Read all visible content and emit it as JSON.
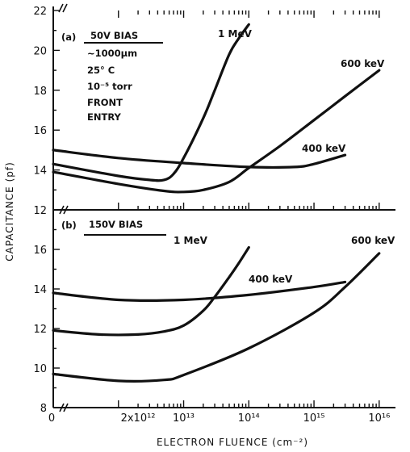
{
  "chart_data": {
    "type": "line",
    "xlabel": "ELECTRON FLUENCE (cm⁻²)",
    "ylabel": "CAPACITANCE (pf)",
    "x_scale": "log",
    "x_tick_labels": [
      {
        "value": 100000000000.0,
        "label": "0"
      },
      {
        "value": 2000000000000.0,
        "label": "2x10¹²"
      },
      {
        "value": 10000000000000.0,
        "label": "10¹³"
      },
      {
        "value": 100000000000000.0,
        "label": "10¹⁴"
      },
      {
        "value": 1000000000000000.0,
        "label": "10¹⁵"
      },
      {
        "value": 1e+16,
        "label": "10¹⁶"
      }
    ],
    "panels": [
      {
        "id": "a",
        "ylim": [
          12,
          22
        ],
        "y_ticks": [
          12,
          14,
          16,
          18,
          20,
          22
        ],
        "y_tick_labels": [
          "12",
          "14",
          "16",
          "18",
          "20",
          "22"
        ],
        "panel_label": "(a)",
        "heading": "50V BIAS",
        "annotations": [
          "~1000μm",
          "25° C",
          "10⁻⁵ torr",
          "FRONT",
          "ENTRY"
        ],
        "series": [
          {
            "name": "1 MeV",
            "x": [
              100000000000.0,
              1000000000000.0,
              3000000000000.0,
              5000000000000.0,
              7000000000000.0,
              10000000000000.0,
              20000000000000.0,
              30000000000000.0,
              50000000000000.0,
              70000000000000.0,
              100000000000000.0
            ],
            "y": [
              14.3,
              13.7,
              13.5,
              13.5,
              13.8,
              14.6,
              16.6,
              18.0,
              19.8,
              20.6,
              21.3
            ]
          },
          {
            "name": "600 keV",
            "x": [
              100000000000.0,
              1000000000000.0,
              5000000000000.0,
              10000000000000.0,
              20000000000000.0,
              50000000000000.0,
              100000000000000.0,
              300000000000000.0,
              1000000000000000.0,
              3000000000000000.0,
              1e+16
            ],
            "y": [
              13.9,
              13.3,
              12.95,
              12.9,
              13.0,
              13.4,
              14.1,
              15.2,
              16.5,
              17.7,
              19.0
            ]
          },
          {
            "name": "400 keV",
            "x": [
              100000000000.0,
              1000000000000.0,
              10000000000000.0,
              100000000000000.0,
              500000000000000.0,
              1000000000000000.0,
              3000000000000000.0
            ],
            "y": [
              15.0,
              14.6,
              14.35,
              14.15,
              14.15,
              14.3,
              14.75
            ]
          }
        ]
      },
      {
        "id": "b",
        "ylim": [
          8,
          18
        ],
        "y_ticks": [
          8,
          10,
          12,
          14,
          16
        ],
        "y_tick_labels": [
          "8",
          "10",
          "12",
          "14",
          "16"
        ],
        "panel_label": "(b)",
        "heading": "150V BIAS",
        "series": [
          {
            "name": "1 MeV",
            "x": [
              100000000000.0,
              500000000000.0,
              2000000000000.0,
              5000000000000.0,
              10000000000000.0,
              20000000000000.0,
              30000000000000.0,
              50000000000000.0,
              70000000000000.0,
              100000000000000.0
            ],
            "y": [
              11.9,
              11.7,
              11.7,
              11.85,
              12.15,
              12.9,
              13.6,
              14.6,
              15.3,
              16.1
            ]
          },
          {
            "name": "600 keV",
            "x": [
              100000000000.0,
              1000000000000.0,
              5000000000000.0,
              10000000000000.0,
              100000000000000.0,
              1000000000000000.0,
              3000000000000000.0,
              1e+16
            ],
            "y": [
              9.7,
              9.35,
              9.4,
              9.65,
              11.0,
              12.8,
              14.1,
              15.8
            ]
          },
          {
            "name": "400 keV",
            "x": [
              100000000000.0,
              1000000000000.0,
              10000000000000.0,
              100000000000000.0,
              1000000000000000.0,
              3000000000000000.0
            ],
            "y": [
              13.8,
              13.45,
              13.45,
              13.7,
              14.1,
              14.35
            ]
          }
        ]
      }
    ]
  }
}
